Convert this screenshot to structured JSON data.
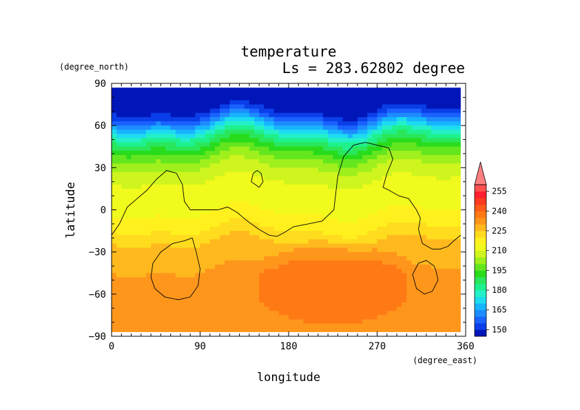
{
  "chart_data": {
    "type": "heatmap",
    "title": "temperature",
    "subtitle": "Ls = 283.62802 degree",
    "xlabel": "longitude",
    "ylabel": "latitude",
    "x_units": "(degree_east)",
    "y_units": "(degree_north)",
    "xlim": [
      0,
      360
    ],
    "ylim": [
      -90,
      90
    ],
    "x_ticks": [
      0,
      90,
      180,
      270,
      360
    ],
    "y_ticks": [
      -90,
      -60,
      -30,
      0,
      30,
      60,
      90
    ],
    "data_lon_range": [
      0,
      355
    ],
    "data_lat_range": [
      -87,
      87
    ],
    "colorbar": {
      "labels": [
        150,
        165,
        180,
        195,
        210,
        225,
        240,
        255
      ],
      "levels": [
        145,
        150,
        155,
        160,
        165,
        170,
        175,
        180,
        185,
        190,
        195,
        200,
        205,
        210,
        215,
        220,
        225,
        230,
        235,
        240,
        245,
        250,
        255,
        260
      ],
      "colors": [
        "#0016b8",
        "#0a3ee8",
        "#1a62ff",
        "#1e8cff",
        "#18b4ff",
        "#1edcf0",
        "#24f0c8",
        "#1ef08c",
        "#2ae65a",
        "#28dc1c",
        "#64e61e",
        "#9ff01c",
        "#cff51e",
        "#f0fa1c",
        "#fff01e",
        "#ffdc1e",
        "#ffb91e",
        "#ff961c",
        "#ff7a14",
        "#ff5a1a",
        "#ff3a20",
        "#ff2030",
        "#ff5050",
        "#ff8080"
      ],
      "extend_max": true
    },
    "temperature_profile": [
      {
        "lat": 87,
        "t": 147
      },
      {
        "lat": 72,
        "t": 148
      },
      {
        "lat": 66,
        "t": 156
      },
      {
        "lat": 60,
        "t": 168
      },
      {
        "lat": 52,
        "t": 182
      },
      {
        "lat": 44,
        "t": 193
      },
      {
        "lat": 36,
        "t": 201
      },
      {
        "lat": 28,
        "t": 207
      },
      {
        "lat": 18,
        "t": 211
      },
      {
        "lat": 8,
        "t": 213
      },
      {
        "lat": -2,
        "t": 215
      },
      {
        "lat": -12,
        "t": 219
      },
      {
        "lat": -20,
        "t": 224
      },
      {
        "lat": -28,
        "t": 227
      },
      {
        "lat": -38,
        "t": 229
      },
      {
        "lat": -48,
        "t": 231
      },
      {
        "lat": -58,
        "t": 231
      },
      {
        "lat": -68,
        "t": 232
      },
      {
        "lat": -78,
        "t": 232
      },
      {
        "lat": -87,
        "t": 231
      }
    ],
    "warm_region": {
      "lon_center": 225,
      "lat_center": -53,
      "lon_radius": 78,
      "lat_radius": 28,
      "t_boost": 8
    },
    "topography_contours": [
      [
        [
          0,
          -18
        ],
        [
          8,
          -10
        ],
        [
          16,
          2
        ],
        [
          26,
          8
        ],
        [
          36,
          14
        ],
        [
          46,
          22
        ],
        [
          56,
          28
        ],
        [
          66,
          26
        ],
        [
          72,
          18
        ],
        [
          74,
          6
        ],
        [
          80,
          0
        ],
        [
          90,
          0
        ],
        [
          100,
          0
        ],
        [
          108,
          0
        ],
        [
          118,
          2
        ],
        [
          128,
          -2
        ],
        [
          138,
          -8
        ],
        [
          150,
          -14
        ],
        [
          160,
          -18
        ],
        [
          168,
          -19
        ],
        [
          176,
          -16
        ],
        [
          185,
          -12
        ],
        [
          200,
          -10
        ],
        [
          214,
          -8
        ],
        [
          226,
          0
        ],
        [
          228,
          12
        ],
        [
          230,
          24
        ],
        [
          236,
          38
        ],
        [
          246,
          46
        ],
        [
          258,
          48
        ],
        [
          270,
          46
        ],
        [
          282,
          44
        ],
        [
          286,
          36
        ],
        [
          280,
          26
        ],
        [
          276,
          16
        ],
        [
          282,
          14
        ],
        [
          292,
          10
        ],
        [
          302,
          8
        ],
        [
          310,
          0
        ],
        [
          314,
          -6
        ],
        [
          312,
          -14
        ],
        [
          316,
          -24
        ],
        [
          326,
          -28
        ],
        [
          334,
          -28
        ],
        [
          342,
          -26
        ],
        [
          348,
          -22
        ],
        [
          355,
          -18
        ]
      ],
      [
        [
          82,
          -20
        ],
        [
          74,
          -22
        ],
        [
          62,
          -24
        ],
        [
          50,
          -30
        ],
        [
          42,
          -38
        ],
        [
          40,
          -48
        ],
        [
          44,
          -56
        ],
        [
          54,
          -62
        ],
        [
          68,
          -64
        ],
        [
          80,
          -62
        ],
        [
          88,
          -54
        ],
        [
          90,
          -42
        ],
        [
          86,
          -30
        ],
        [
          82,
          -20
        ]
      ],
      [
        [
          328,
          -40
        ],
        [
          320,
          -36
        ],
        [
          312,
          -38
        ],
        [
          306,
          -46
        ],
        [
          310,
          -56
        ],
        [
          318,
          -60
        ],
        [
          326,
          -58
        ],
        [
          332,
          -50
        ],
        [
          330,
          -44
        ],
        [
          328,
          -40
        ]
      ],
      [
        [
          144,
          26
        ],
        [
          148,
          28
        ],
        [
          152,
          26
        ],
        [
          154,
          20
        ],
        [
          150,
          16
        ],
        [
          146,
          18
        ],
        [
          142,
          20
        ],
        [
          144,
          26
        ]
      ]
    ]
  }
}
